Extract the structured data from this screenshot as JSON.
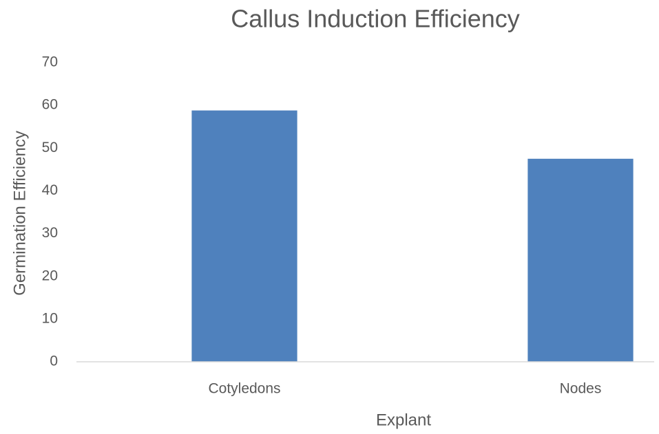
{
  "chart_data": {
    "type": "bar",
    "title": "Callus Induction Efficiency",
    "x_label": "Explant",
    "y_label": "Germination Efficiency",
    "categories": [
      "Cotyledons",
      "Nodes"
    ],
    "values": [
      58.8,
      47.5
    ],
    "color": "#4f81bd",
    "ylim": [
      0,
      70
    ],
    "yticks": [
      0,
      10,
      20,
      30,
      40,
      50,
      60,
      70
    ],
    "grid": false
  }
}
